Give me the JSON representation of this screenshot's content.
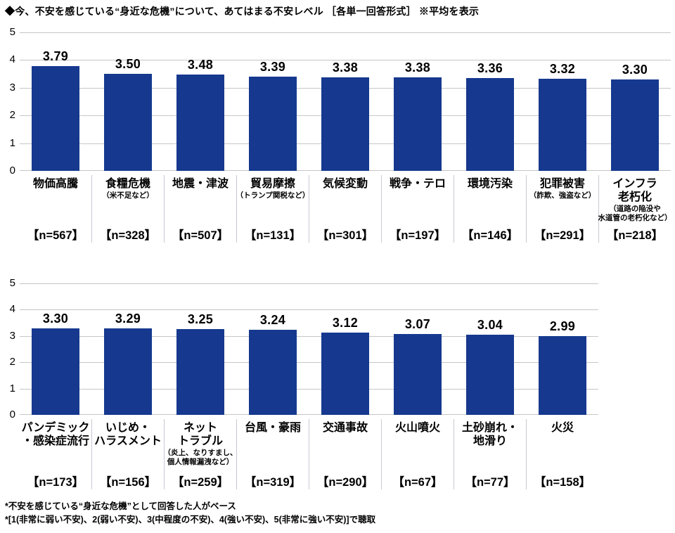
{
  "title": "◆今、不安を感じている“身近な危機”について、あてはまる不安レベル ［各単一回答形式］ ※平均を表示",
  "footnotes": [
    "*不安を感じている“身近な危機”として回答した人がベース",
    "*[1(非常に弱い不安)、2(弱い不安)、3(中程度の不安)、4(強い不安)、5(非常に強い不安)]で聴取"
  ],
  "colors": {
    "bar": "#16398f",
    "gridline": "#c6c6c6",
    "label_separator": "#c6cad2",
    "text": "#000000"
  },
  "chart_data": [
    {
      "type": "bar",
      "title": "不安レベル平均（上段）",
      "ylim": [
        0,
        5
      ],
      "yticks": [
        0,
        1,
        2,
        3,
        4,
        5
      ],
      "grid": true,
      "legend": "none",
      "bar_color": "#16398f",
      "categories": [
        "物価高騰",
        "食糧危機",
        "地震・津波",
        "貿易摩擦",
        "気候変動",
        "戦争・テロ",
        "環境汚染",
        "犯罪被害",
        "インフラ\n老朽化"
      ],
      "notes": [
        "",
        "（米不足など）",
        "",
        "（トランプ関税など）",
        "",
        "",
        "",
        "（詐欺、強盗など）",
        "（道路の陥没や\n水道管の老朽化など）"
      ],
      "n_labels": [
        "【n=567】",
        "【n=328】",
        "【n=507】",
        "【n=131】",
        "【n=301】",
        "【n=197】",
        "【n=146】",
        "【n=291】",
        "【n=218】"
      ],
      "values": [
        3.79,
        3.5,
        3.48,
        3.39,
        3.38,
        3.38,
        3.36,
        3.32,
        3.3
      ],
      "value_labels": [
        "3.79",
        "3.50",
        "3.48",
        "3.39",
        "3.38",
        "3.38",
        "3.36",
        "3.32",
        "3.30"
      ]
    },
    {
      "type": "bar",
      "title": "不安レベル平均（下段）",
      "ylim": [
        0,
        5
      ],
      "yticks": [
        0,
        1,
        2,
        3,
        4,
        5
      ],
      "grid": true,
      "legend": "none",
      "bar_color": "#16398f",
      "categories": [
        "パンデミック\n・感染症流行",
        "いじめ・\nハラスメント",
        "ネット\nトラブル",
        "台風・豪雨",
        "交通事故",
        "火山噴火",
        "土砂崩れ・\n地滑り",
        "火災"
      ],
      "notes": [
        "",
        "",
        "（炎上、なりすまし、\n個人情報漏洩など）",
        "",
        "",
        "",
        "",
        ""
      ],
      "n_labels": [
        "【n=173】",
        "【n=156】",
        "【n=259】",
        "【n=319】",
        "【n=290】",
        "【n=67】",
        "【n=77】",
        "【n=158】"
      ],
      "values": [
        3.3,
        3.29,
        3.25,
        3.24,
        3.12,
        3.07,
        3.04,
        2.99
      ],
      "value_labels": [
        "3.30",
        "3.29",
        "3.25",
        "3.24",
        "3.12",
        "3.07",
        "3.04",
        "2.99"
      ]
    }
  ]
}
